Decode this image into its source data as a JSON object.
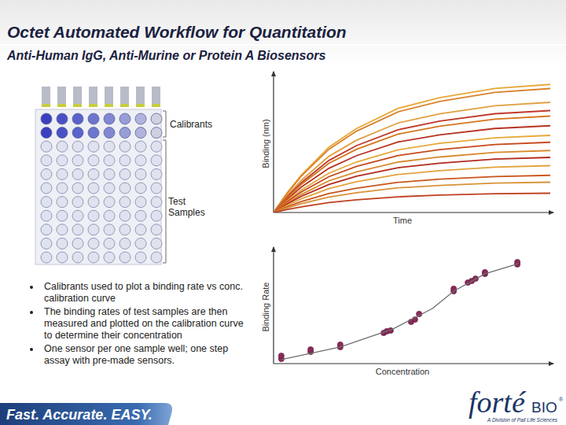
{
  "header": {
    "title": "Octet Automated Workflow for Quantitation",
    "subtitle": "Anti-Human IgG, Anti-Murine or Protein A Biosensors"
  },
  "plate": {
    "calibrants_label": "Calibrants",
    "samples_label": "Test Samples"
  },
  "bullets": [
    "Calibrants used to plot a binding rate vs conc. calibration curve",
    "The binding rates of test samples are then measured and plotted on the calibration curve to determine their concentration",
    "One sensor per one sample well; one step assay with pre-made sensors."
  ],
  "footer": {
    "tagline": "Fast. Accurate. EASY.",
    "logo_main": "forté",
    "logo_bio": "BIO",
    "logo_mark": "®",
    "logo_sub": "A Division of Pall Life Sciences"
  },
  "chart_data": [
    {
      "type": "line",
      "x_label": "Time",
      "y_label": "Binding (nm)",
      "xlim": [
        0,
        100
      ],
      "ylim": [
        0,
        100
      ],
      "tick_labels": false,
      "x": [
        0,
        5,
        10,
        20,
        30,
        45,
        60,
        80,
        100
      ],
      "series": [
        {
          "color": "#e8a838",
          "values": [
            0,
            14.5,
            27.1,
            47.5,
            61.0,
            75.6,
            83.3,
            90.1,
            93
          ]
        },
        {
          "color": "#d9822b",
          "values": [
            0,
            14.1,
            26.3,
            45.9,
            59.1,
            73.1,
            80.6,
            87.2,
            90
          ]
        },
        {
          "color": "#e0a040",
          "values": [
            0,
            12.5,
            23.3,
            40.8,
            52.5,
            65.0,
            71.7,
            77.5,
            80
          ]
        },
        {
          "color": "#c0392b",
          "values": [
            0,
            11.6,
            21.6,
            37.8,
            48.6,
            60.1,
            66.3,
            71.7,
            74
          ]
        },
        {
          "color": "#d4761f",
          "values": [
            0,
            10.9,
            20.4,
            35.7,
            45.9,
            56.9,
            62.7,
            67.8,
            70
          ]
        },
        {
          "color": "#b83222",
          "values": [
            0,
            9.8,
            18.4,
            32.1,
            41.3,
            51.2,
            56.4,
            61.0,
            63
          ]
        },
        {
          "color": "#e6a83a",
          "values": [
            0,
            8.8,
            16.3,
            28.6,
            36.7,
            45.5,
            50.2,
            54.2,
            56
          ]
        },
        {
          "color": "#c44a1c",
          "values": [
            0,
            8.0,
            14.9,
            26.0,
            33.5,
            41.4,
            45.7,
            49.4,
            51
          ]
        },
        {
          "color": "#d98a2e",
          "values": [
            0,
            7.0,
            13.1,
            23.0,
            29.5,
            36.6,
            40.3,
            43.6,
            45
          ]
        },
        {
          "color": "#b22a1e",
          "values": [
            0,
            6.3,
            11.7,
            20.4,
            26.3,
            32.5,
            35.8,
            38.8,
            40
          ]
        },
        {
          "color": "#e2a23c",
          "values": [
            0,
            5.3,
            9.9,
            17.3,
            22.3,
            27.6,
            30.4,
            32.9,
            34
          ]
        },
        {
          "color": "#c9561e",
          "values": [
            0,
            4.2,
            7.9,
            13.8,
            17.7,
            21.9,
            24.2,
            26.1,
            27
          ]
        },
        {
          "color": "#d89238",
          "values": [
            0,
            3.4,
            6.4,
            11.2,
            14.4,
            17.9,
            19.7,
            21.3,
            22
          ]
        },
        {
          "color": "#bf4020",
          "values": [
            0,
            2.2,
            4.1,
            7.2,
            9.2,
            11.4,
            12.6,
            13.6,
            14
          ]
        }
      ]
    },
    {
      "type": "scatter",
      "x_label": "Concentration",
      "y_label": "Binding Rate",
      "xlim": [
        0,
        100
      ],
      "ylim": [
        0,
        100
      ],
      "tick_labels": false,
      "series": [
        {
          "type": "scatter",
          "color": "#8b2a5a",
          "marker": "circle",
          "x": [
            2.8,
            2.8,
            13.4,
            13.4,
            24.1,
            24.1,
            39.8,
            40.9,
            42.3,
            49.7,
            51.1,
            52.6,
            65.1,
            65.1,
            70.2,
            71.6,
            73.0,
            76.4,
            76.4,
            88.1,
            88.1
          ],
          "values": [
            4.2,
            6.9,
            10.4,
            12.5,
            14.6,
            16.7,
            27.1,
            28.5,
            29.2,
            36.8,
            38.9,
            43.8,
            63.9,
            66.0,
            71.5,
            72.9,
            75.0,
            79.2,
            80.6,
            87.5,
            89.6
          ]
        },
        {
          "type": "line",
          "color": "#6e6e6e",
          "line_style": "solid",
          "x": [
            2.8,
            24.1,
            43.2,
            57.4,
            65.1,
            76.4,
            88.6
          ],
          "values": [
            3.5,
            14.6,
            30.6,
            48.6,
            63.9,
            79.2,
            88.2
          ]
        }
      ]
    }
  ]
}
